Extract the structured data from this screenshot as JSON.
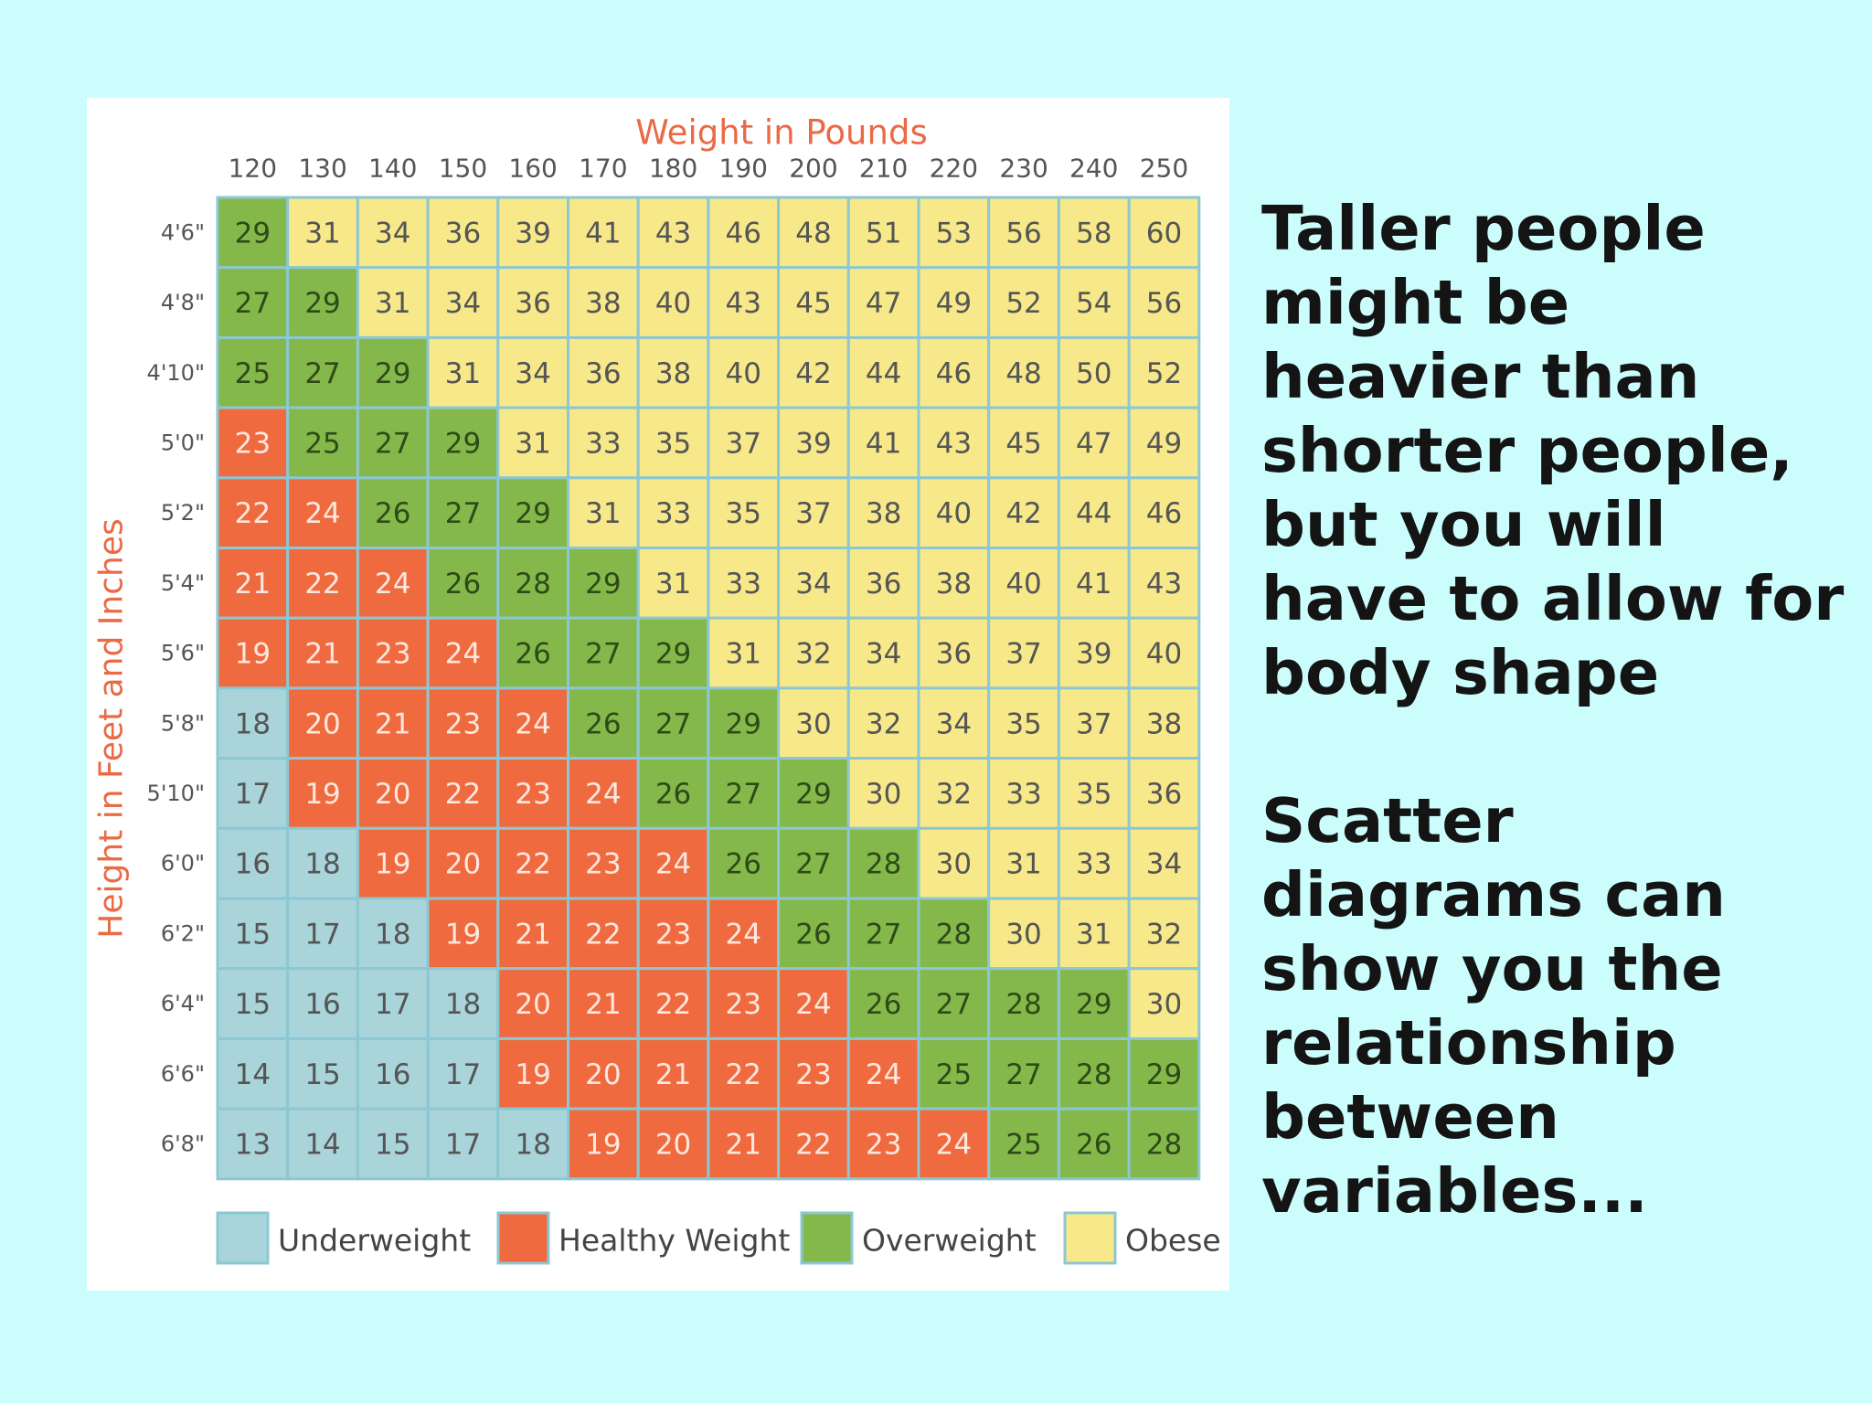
{
  "side_text": {
    "paragraph_1": "Taller people might be heavier than shorter people, but you will have to allow for body shape",
    "paragraph_2": "Scatter diagrams can show you the relationship between variables..."
  },
  "chart_data": {
    "type": "heatmap",
    "title": "Weight in Pounds",
    "xlabel": "Weight in Pounds",
    "ylabel": "Height in Feet and Inches",
    "x_categories": [
      "120",
      "130",
      "140",
      "150",
      "160",
      "170",
      "180",
      "190",
      "200",
      "210",
      "220",
      "230",
      "240",
      "250"
    ],
    "y_categories": [
      "4'6\"",
      "4'8\"",
      "4'10\"",
      "5'0\"",
      "5'2\"",
      "5'4\"",
      "5'6\"",
      "5'8\"",
      "5'10\"",
      "6'0\"",
      "6'2\"",
      "6'4\"",
      "6'6\"",
      "6'8\""
    ],
    "values": [
      [
        29,
        31,
        34,
        36,
        39,
        41,
        43,
        46,
        48,
        51,
        53,
        56,
        58,
        60
      ],
      [
        27,
        29,
        31,
        34,
        36,
        38,
        40,
        43,
        45,
        47,
        49,
        52,
        54,
        56
      ],
      [
        25,
        27,
        29,
        31,
        34,
        36,
        38,
        40,
        42,
        44,
        46,
        48,
        50,
        52
      ],
      [
        23,
        25,
        27,
        29,
        31,
        33,
        35,
        37,
        39,
        41,
        43,
        45,
        47,
        49
      ],
      [
        22,
        24,
        26,
        27,
        29,
        31,
        33,
        35,
        37,
        38,
        40,
        42,
        44,
        46
      ],
      [
        21,
        22,
        24,
        26,
        28,
        29,
        31,
        33,
        34,
        36,
        38,
        40,
        41,
        43
      ],
      [
        19,
        21,
        23,
        24,
        26,
        27,
        29,
        31,
        32,
        34,
        36,
        37,
        39,
        40
      ],
      [
        18,
        20,
        21,
        23,
        24,
        26,
        27,
        29,
        30,
        32,
        34,
        35,
        37,
        38
      ],
      [
        17,
        19,
        20,
        22,
        23,
        24,
        26,
        27,
        29,
        30,
        32,
        33,
        35,
        36
      ],
      [
        16,
        18,
        19,
        20,
        22,
        23,
        24,
        26,
        27,
        28,
        30,
        31,
        33,
        34
      ],
      [
        15,
        17,
        18,
        19,
        21,
        22,
        23,
        24,
        26,
        27,
        28,
        30,
        31,
        32
      ],
      [
        15,
        16,
        17,
        18,
        20,
        21,
        22,
        23,
        24,
        26,
        27,
        28,
        29,
        30
      ],
      [
        14,
        15,
        16,
        17,
        19,
        20,
        21,
        22,
        23,
        24,
        25,
        27,
        28,
        29
      ],
      [
        13,
        14,
        15,
        17,
        18,
        19,
        20,
        21,
        22,
        23,
        24,
        25,
        26,
        28
      ]
    ],
    "categories_grid": [
      [
        "O",
        "B",
        "B",
        "B",
        "B",
        "B",
        "B",
        "B",
        "B",
        "B",
        "B",
        "B",
        "B",
        "B"
      ],
      [
        "O",
        "O",
        "B",
        "B",
        "B",
        "B",
        "B",
        "B",
        "B",
        "B",
        "B",
        "B",
        "B",
        "B"
      ],
      [
        "O",
        "O",
        "O",
        "B",
        "B",
        "B",
        "B",
        "B",
        "B",
        "B",
        "B",
        "B",
        "B",
        "B"
      ],
      [
        "H",
        "O",
        "O",
        "O",
        "B",
        "B",
        "B",
        "B",
        "B",
        "B",
        "B",
        "B",
        "B",
        "B"
      ],
      [
        "H",
        "H",
        "O",
        "O",
        "O",
        "B",
        "B",
        "B",
        "B",
        "B",
        "B",
        "B",
        "B",
        "B"
      ],
      [
        "H",
        "H",
        "H",
        "O",
        "O",
        "O",
        "B",
        "B",
        "B",
        "B",
        "B",
        "B",
        "B",
        "B"
      ],
      [
        "H",
        "H",
        "H",
        "H",
        "O",
        "O",
        "O",
        "B",
        "B",
        "B",
        "B",
        "B",
        "B",
        "B"
      ],
      [
        "U",
        "H",
        "H",
        "H",
        "H",
        "O",
        "O",
        "O",
        "B",
        "B",
        "B",
        "B",
        "B",
        "B"
      ],
      [
        "U",
        "H",
        "H",
        "H",
        "H",
        "H",
        "O",
        "O",
        "O",
        "B",
        "B",
        "B",
        "B",
        "B"
      ],
      [
        "U",
        "U",
        "H",
        "H",
        "H",
        "H",
        "H",
        "O",
        "O",
        "O",
        "B",
        "B",
        "B",
        "B"
      ],
      [
        "U",
        "U",
        "U",
        "H",
        "H",
        "H",
        "H",
        "H",
        "O",
        "O",
        "O",
        "B",
        "B",
        "B"
      ],
      [
        "U",
        "U",
        "U",
        "U",
        "H",
        "H",
        "H",
        "H",
        "H",
        "O",
        "O",
        "O",
        "O",
        "B"
      ],
      [
        "U",
        "U",
        "U",
        "U",
        "H",
        "H",
        "H",
        "H",
        "H",
        "H",
        "O",
        "O",
        "O",
        "O"
      ],
      [
        "U",
        "U",
        "U",
        "U",
        "U",
        "H",
        "H",
        "H",
        "H",
        "H",
        "H",
        "O",
        "O",
        "O"
      ]
    ],
    "legend": [
      {
        "key": "U",
        "label": "Underweight",
        "color": "#a8d4da",
        "text_color": "#555555"
      },
      {
        "key": "H",
        "label": "Healthy Weight",
        "color": "#f06a3f",
        "text_color": "#fde8e0"
      },
      {
        "key": "O",
        "label": "Overweight",
        "color": "#85b84b",
        "text_color": "#2e4a17"
      },
      {
        "key": "B",
        "label": "Obese",
        "color": "#f7e98a",
        "text_color": "#555555"
      }
    ],
    "legend_position": "bottom",
    "grid_line_color": "#8cc7d3",
    "axis_title_color": "#ea6a45"
  }
}
